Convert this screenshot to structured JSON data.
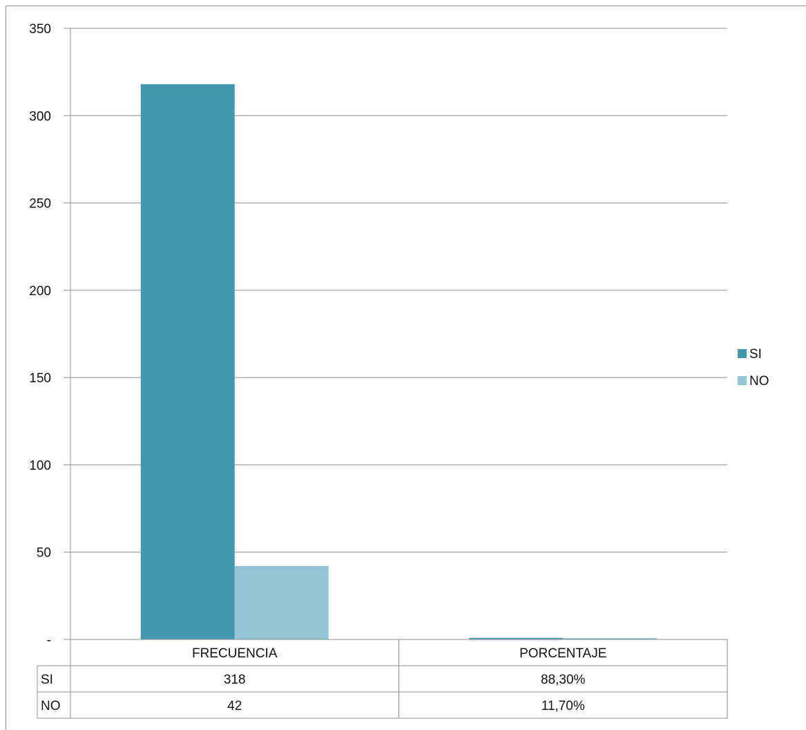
{
  "chart_data": {
    "type": "bar",
    "categories": [
      "FRECUENCIA",
      "PORCENTAJE"
    ],
    "series": [
      {
        "name": "SI",
        "values": [
          318,
          0.883
        ],
        "table_values": [
          "318",
          "88,30%"
        ],
        "color": "#4398b0"
      },
      {
        "name": "NO",
        "values": [
          42,
          0.117
        ],
        "table_values": [
          "42",
          "11,70%"
        ],
        "color": "#94c4d5"
      }
    ],
    "ylim": [
      0,
      350
    ],
    "yticks": [
      0,
      50,
      100,
      150,
      200,
      250,
      300,
      350
    ],
    "ytick_labels": [
      "-",
      "50",
      "100",
      "150",
      "200",
      "250",
      "300",
      "350"
    ],
    "grid": true,
    "legend_position": "right",
    "data_table": true
  },
  "colors": {
    "grid": "#8c8c8c",
    "frame": "#8c8c8c"
  }
}
